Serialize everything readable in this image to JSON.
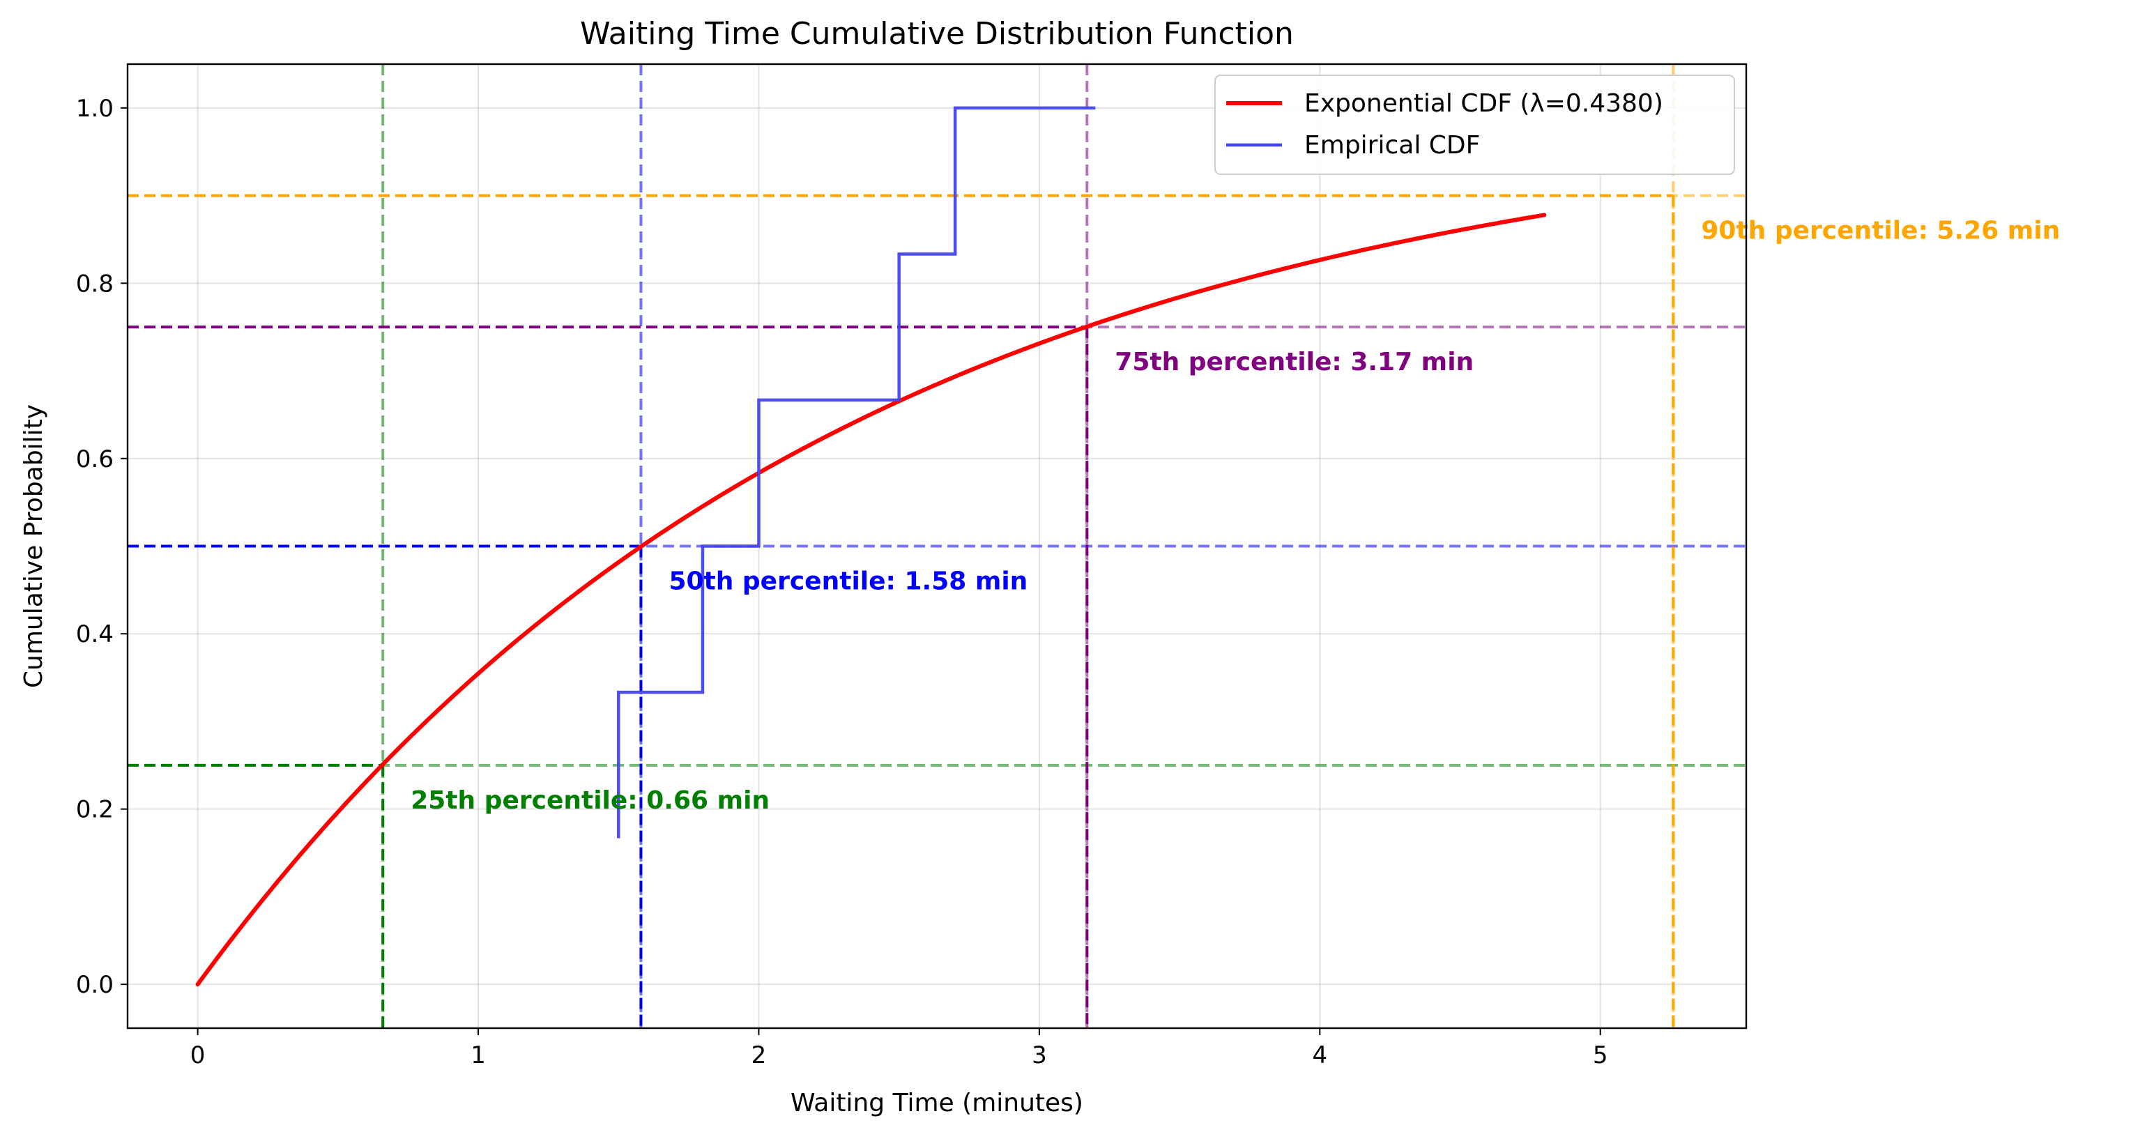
{
  "chart_data": {
    "type": "line",
    "title": "Waiting Time Cumulative Distribution Function",
    "xlabel": "Waiting Time (minutes)",
    "ylabel": "Cumulative Probability",
    "xlim": [
      -0.25,
      5.52
    ],
    "ylim": [
      -0.05,
      1.05
    ],
    "xticks": [
      0,
      1,
      2,
      3,
      4,
      5
    ],
    "xtick_labels": [
      "0",
      "1",
      "2",
      "3",
      "4",
      "5"
    ],
    "yticks": [
      0.0,
      0.2,
      0.4,
      0.6,
      0.8,
      1.0
    ],
    "ytick_labels": [
      "0.0",
      "0.2",
      "0.4",
      "0.6",
      "0.8",
      "1.0"
    ],
    "grid": true,
    "legend_position": "top-right",
    "series": [
      {
        "name": "Exponential CDF (λ=0.4380)",
        "kind": "curve",
        "color": "#ff0000",
        "lambda": 0.438,
        "x_range": [
          0,
          4.8
        ]
      },
      {
        "name": "Empirical CDF",
        "kind": "step",
        "color": "#4444ee",
        "points": [
          {
            "x": 1.5,
            "y": 0.1667
          },
          {
            "x": 1.5,
            "y": 0.3333
          },
          {
            "x": 1.8,
            "y": 0.3333
          },
          {
            "x": 1.8,
            "y": 0.5
          },
          {
            "x": 2.0,
            "y": 0.5
          },
          {
            "x": 2.0,
            "y": 0.6667
          },
          {
            "x": 2.5,
            "y": 0.6667
          },
          {
            "x": 2.5,
            "y": 0.8333
          },
          {
            "x": 2.7,
            "y": 0.8333
          },
          {
            "x": 2.7,
            "y": 1.0
          },
          {
            "x": 3.2,
            "y": 1.0
          }
        ]
      }
    ],
    "percentiles": [
      {
        "p": 0.25,
        "x": 0.66,
        "label": "25th percentile: 0.66 min",
        "color": "#008000"
      },
      {
        "p": 0.5,
        "x": 1.58,
        "label": "50th percentile: 1.58 min",
        "color": "#0000ff"
      },
      {
        "p": 0.75,
        "x": 3.17,
        "label": "75th percentile: 3.17 min",
        "color": "#800080"
      },
      {
        "p": 0.9,
        "x": 5.26,
        "label": "90th percentile: 5.26 min",
        "color": "#ffa500"
      }
    ]
  }
}
